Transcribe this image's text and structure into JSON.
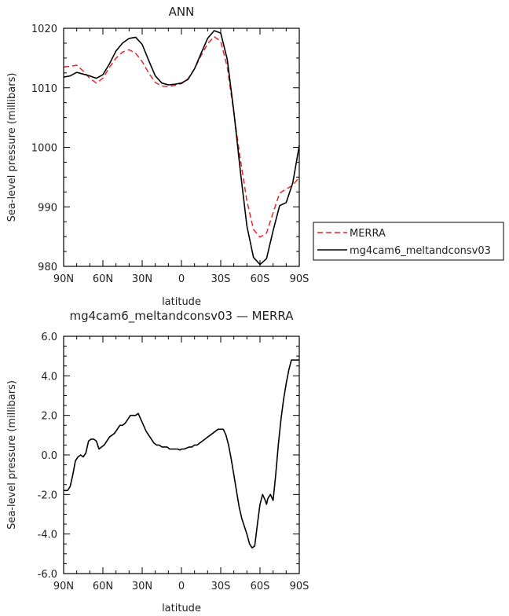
{
  "chart_data": [
    {
      "type": "line",
      "title": "ANN",
      "xlabel": "latitude",
      "ylabel": "Sea-level pressure (millibars)",
      "x_ticks": [
        "90N",
        "60N",
        "30N",
        "0",
        "30S",
        "60S",
        "90S"
      ],
      "y_ticks": [
        "980",
        "990",
        "1000",
        "1010",
        "1020"
      ],
      "xlim": [
        90,
        -90
      ],
      "ylim": [
        980,
        1020
      ],
      "legend": {
        "placement": "outside-right"
      },
      "series": [
        {
          "name": "MERRA",
          "color": "#e8252a",
          "style": "dashed",
          "x": [
            90,
            85,
            80,
            75,
            70,
            65,
            60,
            55,
            50,
            45,
            40,
            35,
            30,
            25,
            20,
            15,
            10,
            5,
            0,
            -5,
            -10,
            -15,
            -20,
            -25,
            -30,
            -35,
            -40,
            -45,
            -50,
            -55,
            -60,
            -65,
            -70,
            -75,
            -80,
            -85,
            -90
          ],
          "y": [
            1013.5,
            1013.6,
            1013.8,
            1012.8,
            1011.6,
            1010.8,
            1011.6,
            1013.4,
            1015.0,
            1016.0,
            1016.4,
            1015.8,
            1014.4,
            1012.5,
            1010.9,
            1010.3,
            1010.2,
            1010.4,
            1010.7,
            1011.5,
            1013.2,
            1015.4,
            1017.4,
            1018.6,
            1017.8,
            1013.5,
            1005.8,
            998.0,
            991.0,
            986.2,
            984.9,
            985.6,
            989.0,
            992.3,
            993.0,
            993.6,
            995.0
          ]
        },
        {
          "name": "mg4cam6_meltandconsv03",
          "color": "#000000",
          "style": "solid",
          "x": [
            90,
            85,
            80,
            75,
            70,
            65,
            60,
            55,
            50,
            45,
            40,
            35,
            30,
            25,
            20,
            15,
            10,
            5,
            0,
            -5,
            -10,
            -15,
            -20,
            -25,
            -30,
            -35,
            -40,
            -45,
            -50,
            -55,
            -60,
            -65,
            -70,
            -75,
            -80,
            -85,
            -90
          ],
          "y": [
            1011.8,
            1012.0,
            1012.6,
            1012.3,
            1012.0,
            1011.6,
            1012.2,
            1014.0,
            1016.2,
            1017.5,
            1018.3,
            1018.5,
            1017.3,
            1014.6,
            1012.0,
            1010.8,
            1010.5,
            1010.6,
            1010.8,
            1011.4,
            1013.2,
            1015.8,
            1018.3,
            1019.6,
            1019.2,
            1014.8,
            1006.0,
            996.0,
            986.8,
            981.5,
            980.3,
            981.3,
            986.0,
            990.2,
            990.7,
            994.0,
            1000.3
          ]
        }
      ]
    },
    {
      "type": "line",
      "title": "mg4cam6_meltandconsv03 — MERRA",
      "xlabel": "latitude",
      "ylabel": "Sea-level pressure (millibars)",
      "x_ticks": [
        "90N",
        "60N",
        "30N",
        "0",
        "30S",
        "60S",
        "90S"
      ],
      "y_ticks": [
        "-6.0",
        "-4.0",
        "-2.0",
        "0.0",
        "2.0",
        "4.0",
        "6.0"
      ],
      "xlim": [
        90,
        -90
      ],
      "ylim": [
        -6,
        6
      ],
      "series": [
        {
          "color": "#000000",
          "style": "solid",
          "x": [
            90,
            87,
            85,
            83,
            81,
            79,
            77,
            75,
            73,
            71,
            69,
            67,
            65,
            63,
            61,
            59,
            57,
            55,
            53,
            51,
            49,
            47,
            45,
            43,
            41,
            39,
            37,
            35,
            33,
            31,
            29,
            27,
            25,
            23,
            21,
            19,
            17,
            15,
            13,
            11,
            9,
            7,
            5,
            3,
            1,
            0,
            -2,
            -4,
            -6,
            -8,
            -10,
            -12,
            -14,
            -16,
            -18,
            -20,
            -22,
            -24,
            -26,
            -28,
            -30,
            -32,
            -34,
            -36,
            -38,
            -40,
            -42,
            -44,
            -46,
            -48,
            -50,
            -52,
            -54,
            -56,
            -58,
            -60,
            -62,
            -64,
            -65,
            -66,
            -68,
            -70,
            -72,
            -74,
            -76,
            -78,
            -80,
            -82,
            -84,
            -86,
            -88,
            -90
          ],
          "y": [
            -1.8,
            -1.8,
            -1.6,
            -1.0,
            -0.3,
            -0.1,
            0.0,
            -0.1,
            0.1,
            0.7,
            0.8,
            0.8,
            0.7,
            0.3,
            0.4,
            0.5,
            0.7,
            0.9,
            1.0,
            1.1,
            1.3,
            1.5,
            1.5,
            1.6,
            1.8,
            2.0,
            2.0,
            2.0,
            2.1,
            1.8,
            1.5,
            1.2,
            1.0,
            0.8,
            0.6,
            0.5,
            0.5,
            0.4,
            0.4,
            0.4,
            0.3,
            0.3,
            0.3,
            0.3,
            0.25,
            0.3,
            0.3,
            0.35,
            0.4,
            0.4,
            0.5,
            0.5,
            0.6,
            0.7,
            0.8,
            0.9,
            1.0,
            1.1,
            1.2,
            1.3,
            1.3,
            1.3,
            1.0,
            0.5,
            -0.2,
            -1.0,
            -1.8,
            -2.6,
            -3.2,
            -3.6,
            -4.0,
            -4.5,
            -4.7,
            -4.6,
            -3.5,
            -2.5,
            -2.0,
            -2.3,
            -2.5,
            -2.2,
            -2.0,
            -2.3,
            -1.0,
            0.5,
            1.8,
            2.8,
            3.6,
            4.3,
            4.8,
            4.8,
            4.8,
            4.8
          ]
        }
      ]
    }
  ]
}
